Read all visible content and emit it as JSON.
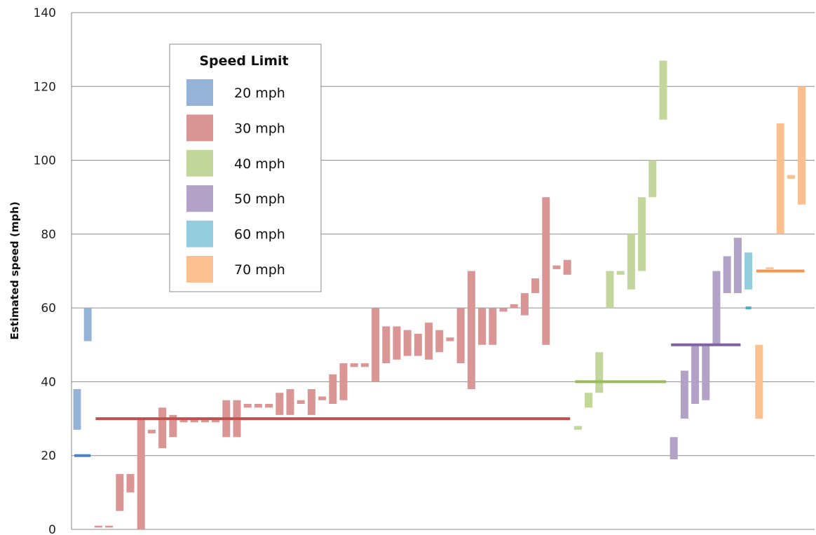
{
  "chart_data": {
    "type": "bar",
    "subtype": "floating range bars with speed-limit reference lines",
    "title": "",
    "xlabel": "",
    "ylabel": "Estimated speed (mph)",
    "ylim": [
      0,
      140
    ],
    "yticks": [
      0,
      20,
      40,
      60,
      80,
      100,
      120,
      140
    ],
    "grid": "horizontal",
    "legend": {
      "title": "Speed Limit",
      "placement": "top-left",
      "entries": [
        "20 mph",
        "30 mph",
        "40 mph",
        "50 mph",
        "60 mph",
        "70 mph"
      ]
    },
    "series": [
      {
        "name": "20 mph",
        "color": "#95B3D7",
        "line_color": "#4F81BD",
        "limit": 20,
        "ranges": [
          [
            27,
            38
          ],
          [
            51,
            60
          ]
        ]
      },
      {
        "name": "30 mph",
        "color": "#D99694",
        "line_color": "#C0504D",
        "limit": 30,
        "ranges": [
          [
            0.5,
            1
          ],
          [
            0.5,
            1
          ],
          [
            5,
            15
          ],
          [
            10,
            15
          ],
          [
            0,
            30
          ],
          [
            26,
            27
          ],
          [
            22,
            33
          ],
          [
            25,
            31
          ],
          [
            29,
            30
          ],
          [
            29,
            30
          ],
          [
            29,
            30
          ],
          [
            29,
            30
          ],
          [
            25,
            35
          ],
          [
            25,
            35
          ],
          [
            33,
            34
          ],
          [
            33,
            34
          ],
          [
            33,
            34
          ],
          [
            31,
            37
          ],
          [
            31,
            38
          ],
          [
            34,
            35
          ],
          [
            31,
            38
          ],
          [
            35,
            36
          ],
          [
            34,
            42
          ],
          [
            35,
            45
          ],
          [
            44,
            45
          ],
          [
            44,
            45
          ],
          [
            40,
            60
          ],
          [
            45,
            55
          ],
          [
            46,
            55
          ],
          [
            47,
            54
          ],
          [
            47,
            53
          ],
          [
            46,
            56
          ],
          [
            48,
            54
          ],
          [
            51,
            52
          ],
          [
            45,
            60
          ],
          [
            38,
            70
          ],
          [
            50,
            60
          ],
          [
            50,
            60
          ],
          [
            59,
            60
          ],
          [
            60,
            61
          ],
          [
            58,
            64
          ],
          [
            64,
            68
          ],
          [
            50,
            90
          ],
          [
            70.5,
            71.5
          ],
          [
            69,
            73
          ]
        ]
      },
      {
        "name": "40 mph",
        "color": "#C3D69B",
        "line_color": "#9BBB59",
        "limit": 40,
        "ranges": [
          [
            27,
            28
          ],
          [
            33,
            37
          ],
          [
            37,
            48
          ],
          [
            60,
            70
          ],
          [
            69,
            70
          ],
          [
            65,
            80
          ],
          [
            70,
            90
          ],
          [
            90,
            100
          ],
          [
            111,
            127
          ]
        ]
      },
      {
        "name": "50 mph",
        "color": "#B3A2C7",
        "line_color": "#8064A2",
        "limit": 50,
        "ranges": [
          [
            19,
            25
          ],
          [
            30,
            43
          ],
          [
            34,
            50
          ],
          [
            35,
            50
          ],
          [
            50,
            70
          ],
          [
            64,
            74
          ],
          [
            64,
            79
          ]
        ]
      },
      {
        "name": "60 mph",
        "color": "#93CDDD",
        "line_color": "#4BACC6",
        "limit": 60,
        "ranges": [
          [
            65,
            75
          ]
        ]
      },
      {
        "name": "70 mph",
        "color": "#FAC090",
        "line_color": "#F79646",
        "limit": 70,
        "ranges": [
          [
            30,
            50
          ],
          [
            70.5,
            71
          ],
          [
            80,
            110
          ],
          [
            95,
            96
          ],
          [
            88,
            120
          ]
        ]
      }
    ]
  }
}
